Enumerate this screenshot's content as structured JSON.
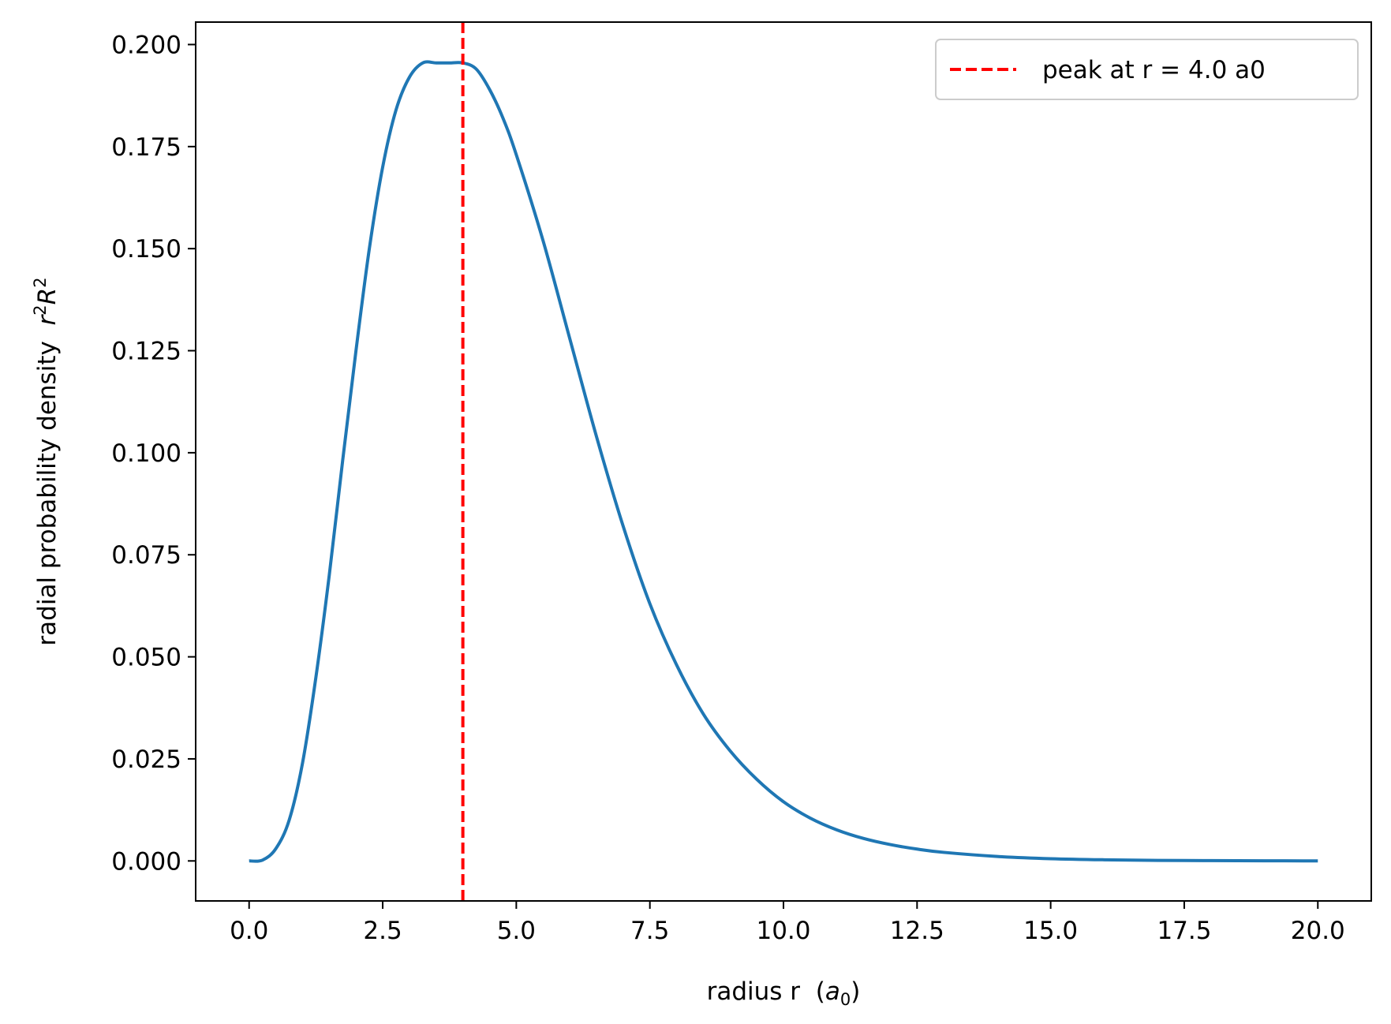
{
  "chart_data": {
    "type": "line",
    "xlabel": "radius r",
    "xlabel_unit_symbol": "a",
    "xlabel_unit_sub": "0",
    "ylabel": "radial probability density",
    "ylabel_math_base1": "r",
    "ylabel_math_sup1": "2",
    "ylabel_math_base2": "R",
    "ylabel_math_sup2": "2",
    "xlim": [
      -1.0,
      21.0
    ],
    "ylim": [
      -0.0098,
      0.2055
    ],
    "x_ticks": [
      0.0,
      2.5,
      5.0,
      7.5,
      10.0,
      12.5,
      15.0,
      17.5,
      20.0
    ],
    "x_tick_labels": [
      "0.0",
      "2.5",
      "5.0",
      "7.5",
      "10.0",
      "12.5",
      "15.0",
      "17.5",
      "20.0"
    ],
    "y_ticks": [
      0.0,
      0.025,
      0.05,
      0.075,
      0.1,
      0.125,
      0.15,
      0.175,
      0.2
    ],
    "y_tick_labels": [
      "0.000",
      "0.025",
      "0.050",
      "0.075",
      "0.100",
      "0.125",
      "0.150",
      "0.175",
      "0.200"
    ],
    "grid": false,
    "legend_position": "top-right",
    "series": [
      {
        "color": "#1f77b4",
        "x": [
          0,
          0.25,
          0.5,
          0.75,
          1.0,
          1.25,
          1.5,
          1.75,
          2.0,
          2.25,
          2.5,
          2.75,
          3.0,
          3.25,
          3.5,
          3.75,
          4.0,
          4.25,
          4.5,
          4.75,
          5.0,
          5.5,
          6.0,
          6.5,
          7.0,
          7.5,
          8.0,
          8.5,
          9.0,
          9.5,
          10.0,
          10.5,
          11.0,
          11.5,
          12.0,
          12.5,
          13.0,
          14.0,
          15.0,
          16.0,
          17.0,
          18.0,
          19.0,
          20.0
        ],
        "y": [
          0.0,
          0.0002,
          0.003,
          0.01,
          0.024,
          0.045,
          0.07,
          0.098,
          0.125,
          0.15,
          0.17,
          0.184,
          0.192,
          0.1955,
          0.1955,
          0.1955,
          0.1955,
          0.194,
          0.189,
          0.182,
          0.173,
          0.152,
          0.128,
          0.104,
          0.082,
          0.063,
          0.048,
          0.036,
          0.027,
          0.02,
          0.0145,
          0.0105,
          0.0076,
          0.0055,
          0.004,
          0.0029,
          0.0021,
          0.0011,
          0.00055,
          0.00028,
          0.00014,
          7e-05,
          3e-05,
          1e-05
        ]
      }
    ],
    "peak_line": {
      "x": 4.0,
      "color": "#ff0000",
      "legend_label": "peak at r = 4.0 a0"
    }
  }
}
